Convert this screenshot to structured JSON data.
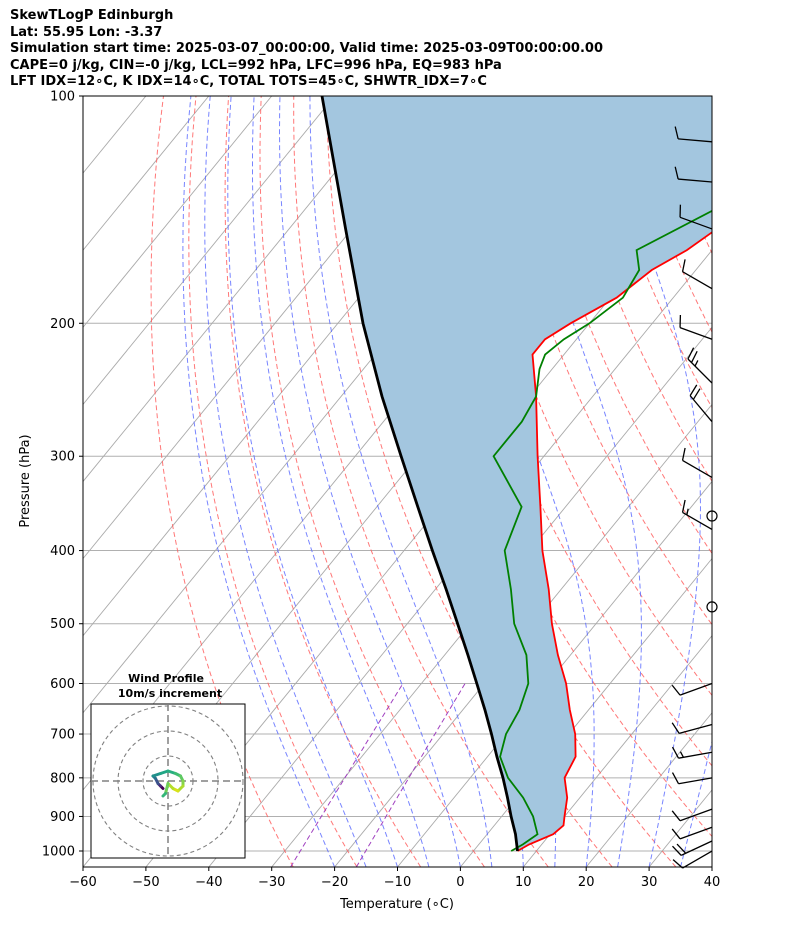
{
  "header": {
    "lines": [
      "SkewTLogP Edinburgh",
      "Lat: 55.95   Lon: -3.37",
      "Simulation start time: 2025-03-07_00:00:00, Valid time: 2025-03-09T00:00:00.00",
      "CAPE=0 j/kg, CIN=-0 j/kg, LCL=992 hPa, LFC=996 hPa, EQ=983 hPa",
      "LFT IDX=12∘C, K IDX=14∘C, TOTAL TOTS=45∘C, SHWTR_IDX=7∘C"
    ]
  },
  "chart_data": {
    "type": "line",
    "subtype": "skew-t log-p",
    "xlabel": "Temperature (∘C)",
    "ylabel": "Pressure (hPa)",
    "xlim": [
      -60,
      40
    ],
    "ylim": [
      1050,
      100
    ],
    "x_ticks": [
      "−60",
      "−50",
      "−40",
      "−30",
      "−20",
      "−10",
      "0",
      "10",
      "20",
      "30",
      "40"
    ],
    "y_ticks": [
      "100",
      "200",
      "300",
      "400",
      "500",
      "600",
      "700",
      "800",
      "900",
      "1000"
    ],
    "y_tick_values": [
      100,
      200,
      300,
      400,
      500,
      600,
      700,
      800,
      900,
      1000
    ],
    "log_y": true,
    "grid": true,
    "colors": {
      "temperature": "#ff0000",
      "dewpoint": "#008000",
      "parcel": "#000000",
      "cape_fill": "#a3c6df",
      "dry_adiabat": "#ff6060",
      "moist_adiabat": "#6070ff",
      "mixing_ratio": "#a040c0",
      "isotherm": "#aaaaaa"
    },
    "series": [
      {
        "role": "temperature",
        "color": "#ff0000",
        "p": [
          1000,
          980,
          950,
          925,
          900,
          850,
          800,
          750,
          700,
          650,
          600,
          550,
          500,
          450,
          400,
          350,
          300,
          250,
          220,
          210,
          200,
          185,
          170,
          160,
          150,
          135,
          120,
          100
        ],
        "t": [
          7,
          8,
          10.5,
          11,
          10,
          8,
          5,
          4,
          1,
          -3,
          -7,
          -12,
          -17,
          -22,
          -28,
          -34,
          -41,
          -49,
          -55,
          -55,
          -53,
          -49,
          -47,
          -44,
          -42,
          -39,
          -37,
          -35
        ]
      },
      {
        "role": "dewpoint",
        "color": "#008000",
        "p": [
          1000,
          980,
          950,
          900,
          850,
          800,
          750,
          700,
          650,
          600,
          550,
          500,
          450,
          400,
          350,
          300,
          270,
          250,
          230,
          220,
          210,
          200,
          185,
          170,
          160,
          130,
          100
        ],
        "t": [
          6,
          7,
          8,
          5,
          1,
          -4,
          -8,
          -10,
          -11,
          -13,
          -17,
          -23,
          -28,
          -34,
          -37,
          -48,
          -48,
          -49,
          -52,
          -53,
          -52,
          -50,
          -48,
          -49,
          -52,
          -40,
          -28
        ]
      },
      {
        "role": "parcel",
        "color": "#000000",
        "p": [
          1000,
          950,
          900,
          850,
          800,
          750,
          700,
          650,
          600,
          550,
          500,
          450,
          400,
          350,
          300,
          250,
          200,
          150,
          100
        ],
        "t": [
          7,
          4.5,
          1.5,
          -1.5,
          -4.8,
          -8.5,
          -12.3,
          -16.5,
          -21.2,
          -26.3,
          -32,
          -38.3,
          -45.5,
          -53.5,
          -62.7,
          -73.5,
          -86,
          -101,
          -122
        ]
      }
    ],
    "wind_profile": {
      "title": "Wind Profile",
      "subtitle": "10m/s increment",
      "u": [
        -2,
        -3,
        -4,
        -5,
        -6,
        -3,
        0,
        3,
        5,
        6,
        6,
        4,
        2,
        0,
        -1,
        -2
      ],
      "v": [
        -3,
        -2,
        -1,
        1,
        2,
        3,
        4,
        3,
        2,
        0,
        -2,
        -4,
        -3,
        -1,
        -5,
        -6
      ]
    },
    "wind_barbs": [
      {
        "p": 1000,
        "dir": 240,
        "speed": 10
      },
      {
        "p": 970,
        "dir": 245,
        "speed": 20
      },
      {
        "p": 930,
        "dir": 250,
        "speed": 10
      },
      {
        "p": 880,
        "dir": 250,
        "speed": 10
      },
      {
        "p": 800,
        "dir": 260,
        "speed": 10
      },
      {
        "p": 740,
        "dir": 260,
        "speed": 15
      },
      {
        "p": 680,
        "dir": 255,
        "speed": 10
      },
      {
        "p": 600,
        "dir": 250,
        "speed": 10
      },
      {
        "p": 475,
        "dir": 0,
        "speed": 0
      },
      {
        "p": 375,
        "dir": 300,
        "speed": 15
      },
      {
        "p": 360,
        "dir": 0,
        "speed": 0
      },
      {
        "p": 320,
        "dir": 300,
        "speed": 10
      },
      {
        "p": 270,
        "dir": 320,
        "speed": 20
      },
      {
        "p": 240,
        "dir": 315,
        "speed": 25
      },
      {
        "p": 210,
        "dir": 290,
        "speed": 10
      },
      {
        "p": 180,
        "dir": 300,
        "speed": 10
      },
      {
        "p": 150,
        "dir": 290,
        "speed": 10
      },
      {
        "p": 130,
        "dir": 275,
        "speed": 10
      },
      {
        "p": 115,
        "dir": 275,
        "speed": 10
      }
    ]
  }
}
